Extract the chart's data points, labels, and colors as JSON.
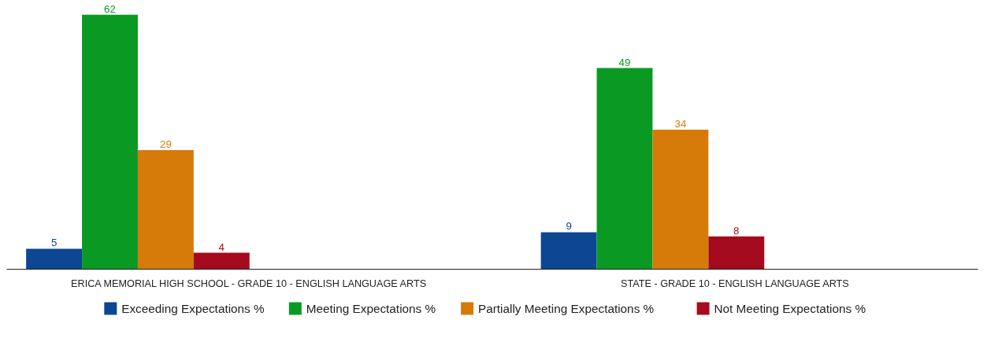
{
  "chart_data": {
    "type": "bar",
    "categories": [
      "ERICA MEMORIAL HIGH SCHOOL - GRADE 10 - ENGLISH LANGUAGE ARTS",
      "STATE - GRADE 10 - ENGLISH LANGUAGE ARTS"
    ],
    "series": [
      {
        "name": "Exceeding Expectations %",
        "color": "#0d4693",
        "values": [
          5,
          9
        ]
      },
      {
        "name": "Meeting Expectations %",
        "color": "#0a9a24",
        "values": [
          62,
          49
        ]
      },
      {
        "name": "Partially Meeting Expectations %",
        "color": "#d67b09",
        "values": [
          29,
          34
        ]
      },
      {
        "name": "Not Meeting Expectations %",
        "color": "#a50a1e",
        "values": [
          4,
          8
        ]
      }
    ],
    "data_labels": true,
    "legend": "bottom",
    "grid": false,
    "tick_labels": "x"
  }
}
